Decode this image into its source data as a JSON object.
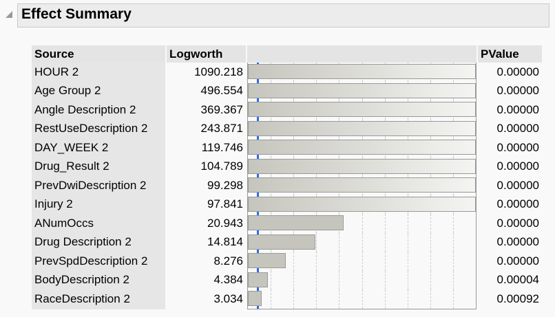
{
  "title": "Effect Summary",
  "headers": {
    "source": "Source",
    "logworth": "Logworth",
    "pvalue": "PValue"
  },
  "rows": [
    {
      "source": "HOUR 2",
      "logworth": "1090.218",
      "pvalue": "0.00000",
      "value": 1090.218
    },
    {
      "source": "Age Group 2",
      "logworth": "496.554",
      "pvalue": "0.00000",
      "value": 496.554
    },
    {
      "source": "Angle Description 2",
      "logworth": "369.367",
      "pvalue": "0.00000",
      "value": 369.367
    },
    {
      "source": "RestUseDescription 2",
      "logworth": "243.871",
      "pvalue": "0.00000",
      "value": 243.871
    },
    {
      "source": "DAY_WEEK 2",
      "logworth": "119.746",
      "pvalue": "0.00000",
      "value": 119.746
    },
    {
      "source": "Drug_Result 2",
      "logworth": "104.789",
      "pvalue": "0.00000",
      "value": 104.789
    },
    {
      "source": "PrevDwiDescription 2",
      "logworth": "99.298",
      "pvalue": "0.00000",
      "value": 99.298
    },
    {
      "source": "Injury 2",
      "logworth": "97.841",
      "pvalue": "0.00000",
      "value": 97.841
    },
    {
      "source": "ANumOccs",
      "logworth": "20.943",
      "pvalue": "0.00000",
      "value": 20.943
    },
    {
      "source": "Drug Description 2",
      "logworth": "14.814",
      "pvalue": "0.00000",
      "value": 14.814
    },
    {
      "source": "PrevSpdDescription 2",
      "logworth": "8.276",
      "pvalue": "0.00000",
      "value": 8.276
    },
    {
      "source": "BodyDescription 2",
      "logworth": "4.384",
      "pvalue": "0.00004",
      "value": 4.384
    },
    {
      "source": "RaceDescription 2",
      "logworth": "3.034",
      "pvalue": "0.00092",
      "value": 3.034
    }
  ],
  "bar_scale_max": 50,
  "reference_logworth": 2
}
